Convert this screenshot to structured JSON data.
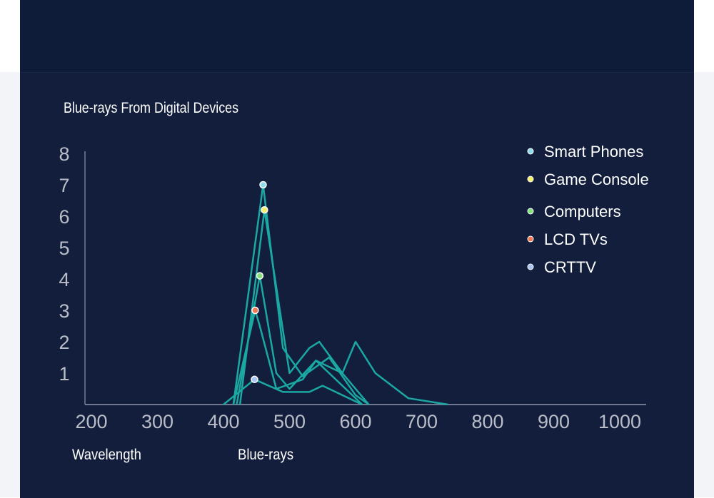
{
  "chart_data": {
    "type": "line",
    "title": "Blue-rays From Digital Devices",
    "xlabel": "Wavelength",
    "annotation": "Blue-rays",
    "xlim": [
      200,
      1000
    ],
    "ylim": [
      0,
      8
    ],
    "x_ticks": [
      200,
      300,
      400,
      500,
      600,
      700,
      800,
      900,
      1000
    ],
    "y_ticks": [
      1,
      2,
      3,
      4,
      5,
      6,
      7,
      8
    ],
    "line_color": "#1ba8a2",
    "legend_position": "top-right",
    "series": [
      {
        "name": "Smart Phones",
        "color": "#8fdcec",
        "peak": [
          460,
          7.0
        ],
        "points": [
          [
            415,
            0
          ],
          [
            460,
            7.0
          ],
          [
            490,
            1.8
          ],
          [
            520,
            0.9
          ],
          [
            560,
            1.5
          ],
          [
            600,
            0.3
          ],
          [
            620,
            0
          ]
        ]
      },
      {
        "name": "Game Console",
        "color": "#f2f06a",
        "peak": [
          462,
          6.2
        ],
        "points": [
          [
            425,
            0
          ],
          [
            462,
            6.2
          ],
          [
            500,
            1.0
          ],
          [
            530,
            1.8
          ],
          [
            545,
            2.0
          ],
          [
            580,
            1.0
          ],
          [
            600,
            2.0
          ],
          [
            630,
            1.0
          ],
          [
            680,
            0.2
          ],
          [
            740,
            0
          ]
        ]
      },
      {
        "name": "Computers",
        "color": "#86e07c",
        "peak": [
          455,
          4.1
        ],
        "points": [
          [
            420,
            0
          ],
          [
            455,
            4.1
          ],
          [
            480,
            1.0
          ],
          [
            500,
            0.5
          ],
          [
            540,
            1.4
          ],
          [
            580,
            1.0
          ],
          [
            620,
            0
          ]
        ]
      },
      {
        "name": "LCD TVs",
        "color": "#f07a55",
        "peak": [
          448,
          3.0
        ],
        "points": [
          [
            415,
            0
          ],
          [
            448,
            3.0
          ],
          [
            455,
            2.5
          ],
          [
            480,
            0.5
          ],
          [
            520,
            0.8
          ],
          [
            540,
            1.4
          ],
          [
            610,
            0
          ]
        ]
      },
      {
        "name": "CRTTV",
        "color": "#a8c4f2",
        "peak": [
          447,
          0.8
        ],
        "points": [
          [
            400,
            0
          ],
          [
            447,
            0.8
          ],
          [
            490,
            0.4
          ],
          [
            530,
            0.4
          ],
          [
            550,
            0.6
          ],
          [
            560,
            0.5
          ],
          [
            590,
            0.2
          ],
          [
            610,
            0
          ]
        ]
      }
    ]
  }
}
